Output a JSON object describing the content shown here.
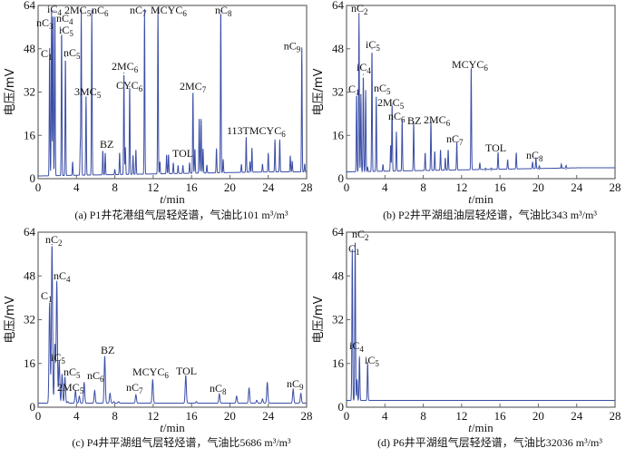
{
  "line_color": "#3b4ea6",
  "chart_data": [
    {
      "type": "line",
      "caption": "(a) P1井花港组气层轻烃谱，气油比101 m³/m³",
      "xlabel_italic": "t",
      "xlabel_unit": "/min",
      "ylabel": "电压/mV",
      "xlim": [
        0,
        28
      ],
      "ylim": [
        0,
        64
      ],
      "xticks": [
        0,
        4,
        8,
        12,
        16,
        20,
        24,
        28
      ],
      "yticks": [
        0,
        16,
        32,
        48,
        64
      ],
      "baseline": [
        1,
        2.5
      ],
      "peaks": [
        {
          "t": 1.2,
          "h": 48,
          "label": "C1"
        },
        {
          "t": 1.4,
          "h": 62,
          "label": "nC3"
        },
        {
          "t": 1.55,
          "h": 62,
          "label": "iC4"
        },
        {
          "t": 1.75,
          "h": 62,
          "label": "nC4"
        },
        {
          "t": 2.45,
          "h": 55,
          "label": "iC5"
        },
        {
          "t": 2.85,
          "h": 45,
          "label": "nC5"
        },
        {
          "t": 3.6,
          "h": 6
        },
        {
          "t": 4.4,
          "h": 12
        },
        {
          "t": 4.5,
          "h": 62,
          "label": "2MC5"
        },
        {
          "t": 5.0,
          "h": 30,
          "label": "3MC5"
        },
        {
          "t": 5.6,
          "h": 62,
          "label": "nC6"
        },
        {
          "t": 6.75,
          "h": 10,
          "label": "BZ"
        },
        {
          "t": 7.0,
          "h": 9
        },
        {
          "t": 8.0,
          "h": 3
        },
        {
          "t": 8.5,
          "h": 9
        },
        {
          "t": 8.95,
          "h": 39,
          "label": "2MC6"
        },
        {
          "t": 9.1,
          "h": 11
        },
        {
          "t": 9.55,
          "h": 34,
          "label": "CYC6"
        },
        {
          "t": 9.9,
          "h": 8
        },
        {
          "t": 10.2,
          "h": 10
        },
        {
          "t": 11.1,
          "h": 62,
          "label": "nC7"
        },
        {
          "t": 12.5,
          "h": 62,
          "label": "MCYC6"
        },
        {
          "t": 12.7,
          "h": 5.5
        },
        {
          "t": 13.4,
          "h": 8
        },
        {
          "t": 13.6,
          "h": 8
        },
        {
          "t": 14.1,
          "h": 5
        },
        {
          "t": 14.6,
          "h": 4
        },
        {
          "t": 15.1,
          "h": 4
        },
        {
          "t": 15.8,
          "h": 5
        },
        {
          "t": 16.15,
          "h": 31.5,
          "label": "2MC7"
        },
        {
          "t": 16.35,
          "h": 10,
          "label": "TOL"
        },
        {
          "t": 16.8,
          "h": 21
        },
        {
          "t": 17.0,
          "h": 21
        },
        {
          "t": 17.2,
          "h": 10
        },
        {
          "t": 17.6,
          "h": 4
        },
        {
          "t": 18.6,
          "h": 10
        },
        {
          "t": 19.05,
          "h": 62,
          "label": "nC8"
        },
        {
          "t": 19.3,
          "h": 6
        },
        {
          "t": 21.2,
          "h": 4
        },
        {
          "t": 21.7,
          "h": 14,
          "label": "113TMCYC6"
        },
        {
          "t": 22.1,
          "h": 5
        },
        {
          "t": 22.3,
          "h": 10
        },
        {
          "t": 23.4,
          "h": 4
        },
        {
          "t": 24.0,
          "h": 8
        },
        {
          "t": 24.7,
          "h": 13
        },
        {
          "t": 25.2,
          "h": 13
        },
        {
          "t": 26.3,
          "h": 7
        },
        {
          "t": 26.5,
          "h": 5
        },
        {
          "t": 27.5,
          "h": 47,
          "label": "nC9"
        },
        {
          "t": 27.8,
          "h": 4
        }
      ]
    },
    {
      "type": "line",
      "caption": "(b) P2井平湖组油层轻烃谱，气油比343 m³/m³",
      "xlabel_italic": "t",
      "xlabel_unit": "/min",
      "ylabel": "电压/mV",
      "xlim": [
        0,
        28
      ],
      "ylim": [
        0,
        64
      ],
      "xticks": [
        0,
        4,
        8,
        12,
        16,
        20,
        24,
        28
      ],
      "yticks": [
        0,
        16,
        32,
        48,
        64
      ],
      "baseline": [
        2.5,
        4
      ],
      "peaks": [
        {
          "t": 1.05,
          "h": 31.5,
          "label": "C1"
        },
        {
          "t": 1.3,
          "h": 61,
          "label": "nC2"
        },
        {
          "t": 1.5,
          "h": 31
        },
        {
          "t": 1.75,
          "h": 38.5,
          "label": "iC4"
        },
        {
          "t": 2.0,
          "h": 32.5
        },
        {
          "t": 2.2,
          "h": 4
        },
        {
          "t": 2.65,
          "h": 48,
          "label": "iC5"
        },
        {
          "t": 3.1,
          "h": 30,
          "label": "nC5"
        },
        {
          "t": 3.8,
          "h": 5
        },
        {
          "t": 4.6,
          "h": 12
        },
        {
          "t": 4.75,
          "h": 27.5,
          "label": "2MC5"
        },
        {
          "t": 5.2,
          "h": 17
        },
        {
          "t": 5.8,
          "h": 21.5,
          "label": "nC6"
        },
        {
          "t": 7.0,
          "h": 20.5,
          "label": "BZ"
        },
        {
          "t": 8.2,
          "h": 9
        },
        {
          "t": 8.8,
          "h": 21,
          "label": "2MC6"
        },
        {
          "t": 9.2,
          "h": 9.5
        },
        {
          "t": 9.8,
          "h": 10
        },
        {
          "t": 10.3,
          "h": 7
        },
        {
          "t": 10.6,
          "h": 10
        },
        {
          "t": 11.5,
          "h": 12.7,
          "label": "nC7"
        },
        {
          "t": 13.0,
          "h": 40,
          "label": "MCYC6"
        },
        {
          "t": 13.9,
          "h": 5
        },
        {
          "t": 14.5,
          "h": 3
        },
        {
          "t": 15.1,
          "h": 3
        },
        {
          "t": 15.8,
          "h": 8.8,
          "label": "TOL"
        },
        {
          "t": 16.8,
          "h": 6
        },
        {
          "t": 17.7,
          "h": 8.5
        },
        {
          "t": 19.4,
          "h": 5
        },
        {
          "t": 19.75,
          "h": 6.6,
          "label": "nC8"
        },
        {
          "t": 20.1,
          "h": 3.5
        },
        {
          "t": 22.4,
          "h": 4
        },
        {
          "t": 22.9,
          "h": 3.5
        }
      ]
    },
    {
      "type": "line",
      "caption": "(c) P4井平湖组气层轻烃谱，气油比5686 m³/m³",
      "xlabel_italic": "t",
      "xlabel_unit": "/min",
      "ylabel": "电压/mV",
      "xlim": [
        0,
        28
      ],
      "ylim": [
        0,
        64
      ],
      "xticks": [
        0,
        4,
        8,
        12,
        16,
        20,
        24,
        28
      ],
      "yticks": [
        0,
        16,
        32,
        48,
        64
      ],
      "baseline": [
        1.5,
        1.5
      ],
      "peaks": [
        {
          "t": 1.2,
          "h": 38,
          "label": "C1"
        },
        {
          "t": 1.45,
          "h": 59.5,
          "label": "nC2"
        },
        {
          "t": 1.75,
          "h": 23
        },
        {
          "t": 1.95,
          "h": 46,
          "label": "nC4"
        },
        {
          "t": 2.2,
          "h": 17,
          "label": "iC5"
        },
        {
          "t": 2.5,
          "h": 12,
          "label": "nC5"
        },
        {
          "t": 2.8,
          "h": 11
        },
        {
          "t": 3.1,
          "h": 2
        },
        {
          "t": 3.9,
          "h": 6,
          "label": "2MC5"
        },
        {
          "t": 4.3,
          "h": 4
        },
        {
          "t": 4.8,
          "h": 9,
          "label": "nC6"
        },
        {
          "t": 5.9,
          "h": 6
        },
        {
          "t": 6.95,
          "h": 18.5,
          "label": "BZ"
        },
        {
          "t": 7.5,
          "h": 5
        },
        {
          "t": 7.9,
          "h": 2
        },
        {
          "t": 8.4,
          "h": 2
        },
        {
          "t": 10.2,
          "h": 4.5,
          "label": "nC7"
        },
        {
          "t": 11.95,
          "h": 10,
          "label": "MCYC6"
        },
        {
          "t": 15.4,
          "h": 11.5,
          "label": "TOL"
        },
        {
          "t": 16.5,
          "h": 2
        },
        {
          "t": 18.9,
          "h": 4.8,
          "label": "nC8"
        },
        {
          "t": 20.7,
          "h": 4
        },
        {
          "t": 22.0,
          "h": 7
        },
        {
          "t": 22.8,
          "h": 2.5
        },
        {
          "t": 23.4,
          "h": 3
        },
        {
          "t": 23.9,
          "h": 9
        },
        {
          "t": 24.7,
          "h": 1.5
        },
        {
          "t": 26.6,
          "h": 6.5,
          "label": "nC9"
        },
        {
          "t": 27.4,
          "h": 5
        }
      ]
    },
    {
      "type": "line",
      "caption": "(d) P6井平湖组气层轻烃谱，气油比32036 m³/m³",
      "xlabel_italic": "t",
      "xlabel_unit": "/min",
      "ylabel": "电压/mV",
      "xlim": [
        0,
        28
      ],
      "ylim": [
        0,
        64
      ],
      "xticks": [
        0,
        4,
        8,
        12,
        16,
        20,
        24,
        28
      ],
      "yticks": [
        0,
        16,
        32,
        48,
        64
      ],
      "baseline": [
        2.5,
        2.5
      ],
      "peaks": [
        {
          "t": 0.6,
          "h": 57.5,
          "label": "C1"
        },
        {
          "t": 0.9,
          "h": 60,
          "label": "nC2"
        },
        {
          "t": 1.1,
          "h": 10
        },
        {
          "t": 1.35,
          "h": 18.5,
          "label": "iC4"
        },
        {
          "t": 2.2,
          "h": 16.3,
          "label": "iC5"
        }
      ]
    }
  ]
}
